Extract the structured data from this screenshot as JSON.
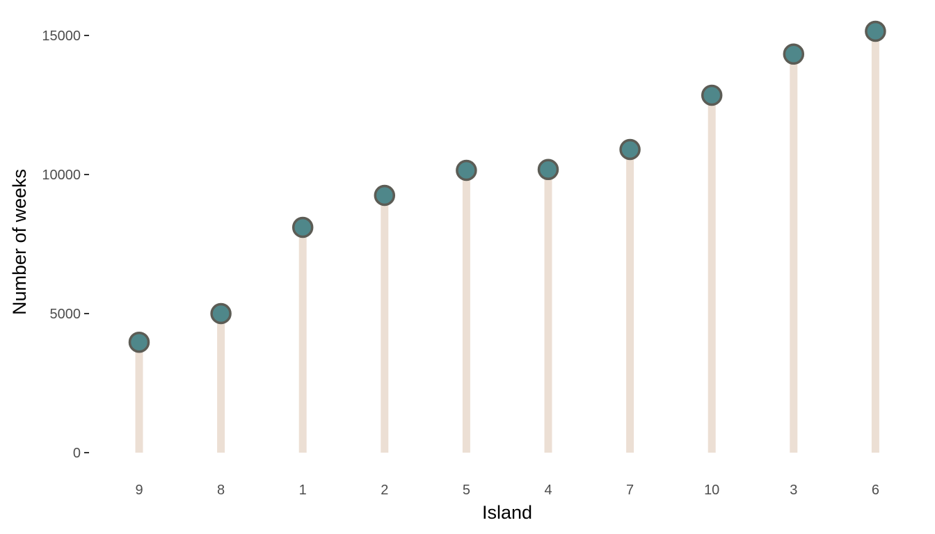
{
  "chart_data": {
    "type": "lollipop",
    "xlabel": "Island",
    "ylabel": "Number of weeks",
    "categories": [
      "9",
      "8",
      "1",
      "2",
      "5",
      "4",
      "7",
      "10",
      "3",
      "6"
    ],
    "values": [
      3970,
      5000,
      8100,
      9250,
      10150,
      10180,
      10900,
      12850,
      14330,
      15150
    ],
    "ylim": [
      0,
      15150
    ],
    "yticks": [
      0,
      5000,
      10000,
      15000
    ],
    "ytick_labels": [
      "0",
      "5000",
      "10000",
      "15000"
    ],
    "grid": false,
    "legend": "none",
    "colors": {
      "stem": "#ecdfd4",
      "point_fill": "#4f878a",
      "point_stroke": "#5c5c55",
      "tick_label": "#4d4d4d",
      "axis_title": "#000000",
      "tick_mark": "#333333"
    }
  }
}
